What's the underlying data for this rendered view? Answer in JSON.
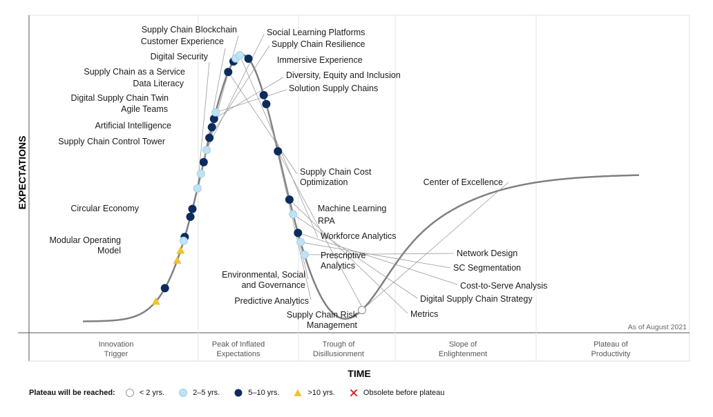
{
  "chart_data": {
    "type": "scatter",
    "title": "",
    "xlabel": "TIME",
    "ylabel": "EXPECTATIONS",
    "as_of": "As of August 2021",
    "phases": [
      {
        "name": "innovation-trigger",
        "lines": [
          "Innovation",
          "Trigger"
        ]
      },
      {
        "name": "peak-of-inflated-expectations",
        "lines": [
          "Peak of Inflated",
          "Expectations"
        ]
      },
      {
        "name": "trough-of-disillusionment",
        "lines": [
          "Trough of",
          "Disillusionment"
        ]
      },
      {
        "name": "slope-of-enlightenment",
        "lines": [
          "Slope of",
          "Enlightenment"
        ]
      },
      {
        "name": "plateau-of-productivity",
        "lines": [
          "Plateau of",
          "Productivity"
        ]
      }
    ],
    "legend": {
      "title": "Plateau will be reached:",
      "items": [
        {
          "key": "lt2",
          "label": "< 2 yrs."
        },
        {
          "key": "2to5",
          "label": "2–5 yrs."
        },
        {
          "key": "5to10",
          "label": "5–10 yrs."
        },
        {
          "key": "gt10",
          "label": ">10 yrs."
        },
        {
          "key": "obsolete",
          "label": "Obsolete before plateau"
        }
      ]
    },
    "colors": {
      "curve": "#7f7f7f",
      "lt2": "#ffffff",
      "2to5": "#bfe3f3",
      "5to10": "#0d2b5c",
      "gt10": "#f2c12e",
      "obsolete": "#e8262e"
    },
    "technologies": [
      {
        "name": "Modular Operating Model",
        "lines": [
          "Modular Operating",
          "Model"
        ],
        "cat": "gt10",
        "t": 0.08
      },
      {
        "name": "Circular Economy",
        "lines": [
          "Circular Economy"
        ],
        "cat": "5to10",
        "t": 0.0963
      },
      {
        "name": "Supply Chain Control Tower",
        "lines": [
          "Supply Chain Control Tower"
        ],
        "cat": "gt10",
        "t": 0.1273
      },
      {
        "name": "Artificial Intelligence",
        "lines": [
          "Artificial Intelligence"
        ],
        "cat": "gt10",
        "t": 0.1379
      },
      {
        "name": "Agile Teams",
        "lines": [
          "Agile Teams"
        ],
        "cat": "5to10",
        "t": 0.1523
      },
      {
        "name": "Digital Supply Chain Twin",
        "lines": [
          "Digital Supply Chain Twin"
        ],
        "cat": "2to5",
        "t": 0.1482
      },
      {
        "name": "Data Literacy",
        "lines": [
          "Data Literacy"
        ],
        "cat": "5to10",
        "t": 0.1736
      },
      {
        "name": "Supply Chain as a Service",
        "lines": [
          "Supply Chain as a Service"
        ],
        "cat": "5to10",
        "t": 0.1819
      },
      {
        "name": "Digital Security",
        "lines": [
          "Digital Security"
        ],
        "cat": "2to5",
        "t": 0.2034
      },
      {
        "name": "Customer Experience",
        "lines": [
          "Customer Experience"
        ],
        "cat": "2to5",
        "t": 0.2187
      },
      {
        "name": "Supply Chain Blockchain",
        "lines": [
          "Supply Chain Blockchain"
        ],
        "cat": "5to10",
        "t": 0.2308
      },
      {
        "name": "Social Learning Platforms",
        "lines": [
          "Social Learning Platforms"
        ],
        "cat": "2to5",
        "t": 0.2435
      },
      {
        "name": "Supply Chain Resilience",
        "lines": [
          "Supply Chain Resilience"
        ],
        "cat": "5to10",
        "t": 0.2563
      },
      {
        "name": "Immersive Experience",
        "lines": [
          "Immersive Experience"
        ],
        "cat": "5to10",
        "t": 0.2674
      },
      {
        "name": "Diversity, Equity and Inclusion",
        "lines": [
          "Diversity, Equity and Inclusion"
        ],
        "cat": "5to10",
        "t": 0.2762
      },
      {
        "name": "Solution Supply Chains",
        "lines": [
          "Solution Supply Chains"
        ],
        "cat": "2to5",
        "t": 0.283
      },
      {
        "name": "Supply Chain Cost Optimization",
        "lines": [
          "Supply Chain Cost",
          "Optimization"
        ],
        "cat": "5to10",
        "t": 0.3261
      },
      {
        "name": "Machine Learning",
        "lines": [
          "Machine Learning"
        ],
        "cat": "5to10",
        "t": 0.3381
      },
      {
        "name": "RPA",
        "lines": [
          "RPA"
        ],
        "cat": "2to5",
        "t": 0.3418
      },
      {
        "name": "Workforce Analytics",
        "lines": [
          "Workforce Analytics"
        ],
        "cat": "2to5",
        "t": 0.3472
      },
      {
        "name": "Prescriptive Analytics",
        "lines": [
          "Prescriptive",
          "Analytics"
        ],
        "cat": "5to10",
        "t": 0.3574
      },
      {
        "name": "Environmental, Social and Governance",
        "lines": [
          "Environmental, Social",
          "and Governance"
        ],
        "cat": "5to10",
        "t": 0.3978
      },
      {
        "name": "Predictive Analytics",
        "lines": [
          "Predictive Analytics"
        ],
        "cat": "5to10",
        "t": 0.4073
      },
      {
        "name": "Supply Chain Risk Management",
        "lines": [
          "Supply Chain Risk",
          "Management"
        ],
        "cat": "5to10",
        "t": 0.4568
      },
      {
        "name": "Metrics",
        "lines": [
          "Metrics"
        ],
        "cat": "5to10",
        "t": 0.5074
      },
      {
        "name": "Digital Supply Chain Strategy",
        "lines": [
          "Digital Supply Chain Strategy"
        ],
        "cat": "2to5",
        "t": 0.5227
      },
      {
        "name": "Cost-to-Serve Analysis",
        "lines": [
          "Cost-to-Serve Analysis"
        ],
        "cat": "5to10",
        "t": 0.5424
      },
      {
        "name": "SC Segmentation",
        "lines": [
          "SC Segmentation"
        ],
        "cat": "2to5",
        "t": 0.5522
      },
      {
        "name": "Network Design",
        "lines": [
          "Network Design"
        ],
        "cat": "2to5",
        "t": 0.5656
      },
      {
        "name": "Center of Excellence",
        "lines": [
          "Center of Excellence"
        ],
        "cat": "lt2",
        "t": 0.6661
      }
    ]
  }
}
